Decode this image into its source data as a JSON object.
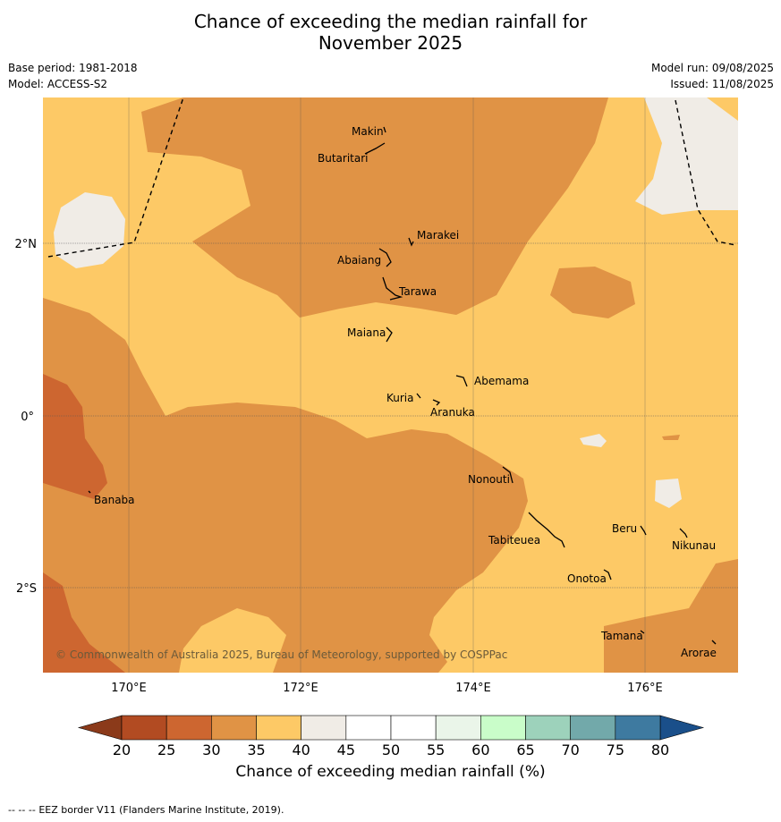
{
  "header": {
    "title_line1": "Chance of exceeding the median rainfall for",
    "title_line2": "November 2025",
    "base_period": "Base period: 1981-2018",
    "model": "Model: ACCESS-S2",
    "model_run": "Model run: 09/08/2025",
    "issued": "Issued: 11/08/2025"
  },
  "map": {
    "lon_labels": [
      "170°E",
      "172°E",
      "174°E",
      "176°E"
    ],
    "lat_labels": [
      "2°N",
      "0°",
      "2°S"
    ],
    "copyright": "© Commonwealth of Australia 2025, Bureau of Meteorology, supported by COSPPac",
    "islands": [
      "Makin",
      "Butaritari",
      "Marakei",
      "Abaiang",
      "Tarawa",
      "Maiana",
      "Abemama",
      "Kuria",
      "Aranuka",
      "Nonouti",
      "Banaba",
      "Tabiteuea",
      "Beru",
      "Nikunau",
      "Onotoa",
      "Tamana",
      "Arorae"
    ]
  },
  "colorbar": {
    "ticks": [
      "20",
      "25",
      "30",
      "35",
      "40",
      "45",
      "50",
      "55",
      "60",
      "65",
      "70",
      "75",
      "80"
    ],
    "colors": [
      "#b24b22",
      "#cd6630",
      "#e09345",
      "#fdc966",
      "#f0ece6",
      "#ffffff",
      "#ffffff",
      "#eaf5e9",
      "#c9fdc9",
      "#9dd2bb",
      "#72a9aa",
      "#3e7aa0"
    ],
    "low_color": "#8b3a1a",
    "high_color": "#1a4f8a",
    "label": "Chance of exceeding median rainfall (%)"
  },
  "legend": {
    "eez_symbol": "--  --  --",
    "eez_text": "EEZ border V11 (Flanders Marine Institute, 2019)."
  },
  "colors": {
    "c30_35": "#e09345",
    "c35_40": "#fdc966",
    "c25_30": "#cd6630",
    "c40_45": "#f0ece6"
  }
}
